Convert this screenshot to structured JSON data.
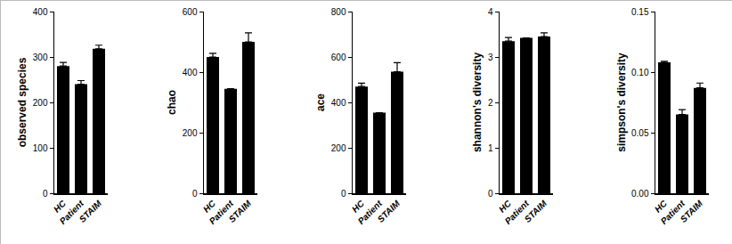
{
  "chart_data": [
    {
      "type": "bar",
      "y_label": "observed species",
      "categories": [
        "HC",
        "Patient",
        "STAIM"
      ],
      "values": [
        280,
        240,
        318
      ],
      "errors": [
        8,
        8,
        8
      ],
      "color": "#000000",
      "ylim": [
        0,
        400
      ],
      "yticks": [
        0,
        100,
        200,
        300,
        400
      ]
    },
    {
      "type": "bar",
      "y_label": "chao",
      "categories": [
        "HC",
        "Patient",
        "STAIM"
      ],
      "values": [
        450,
        345,
        500
      ],
      "errors": [
        12,
        0,
        30
      ],
      "color": "#000000",
      "ylim": [
        0,
        600
      ],
      "yticks": [
        0,
        200,
        400,
        600
      ]
    },
    {
      "type": "bar",
      "y_label": "ace",
      "categories": [
        "HC",
        "Patient",
        "STAIM"
      ],
      "values": [
        470,
        355,
        535
      ],
      "errors": [
        15,
        0,
        40
      ],
      "color": "#000000",
      "ylim": [
        0,
        800
      ],
      "yticks": [
        0,
        200,
        400,
        600,
        800
      ]
    },
    {
      "type": "bar",
      "y_label": "shannon's diversity",
      "categories": [
        "HC",
        "Patient",
        "STAIM"
      ],
      "values": [
        3.35,
        3.42,
        3.45
      ],
      "errors": [
        0.08,
        0,
        0.08
      ],
      "color": "#000000",
      "ylim": [
        0,
        4
      ],
      "yticks": [
        0,
        1,
        2,
        3,
        4
      ]
    },
    {
      "type": "bar",
      "y_label": "simpson's diversity",
      "categories": [
        "HC",
        "Patient",
        "STAIM"
      ],
      "values": [
        0.108,
        0.065,
        0.087
      ],
      "errors": [
        0.001,
        0.004,
        0.004
      ],
      "color": "#000000",
      "ylim": [
        0,
        0.15
      ],
      "yticks": [
        {
          "value": 0,
          "label": "0.00"
        },
        {
          "value": 0.05,
          "label": "0.05"
        },
        {
          "value": 0.1,
          "label": "0.10"
        },
        {
          "value": 0.15,
          "label": "0.15"
        }
      ]
    }
  ]
}
